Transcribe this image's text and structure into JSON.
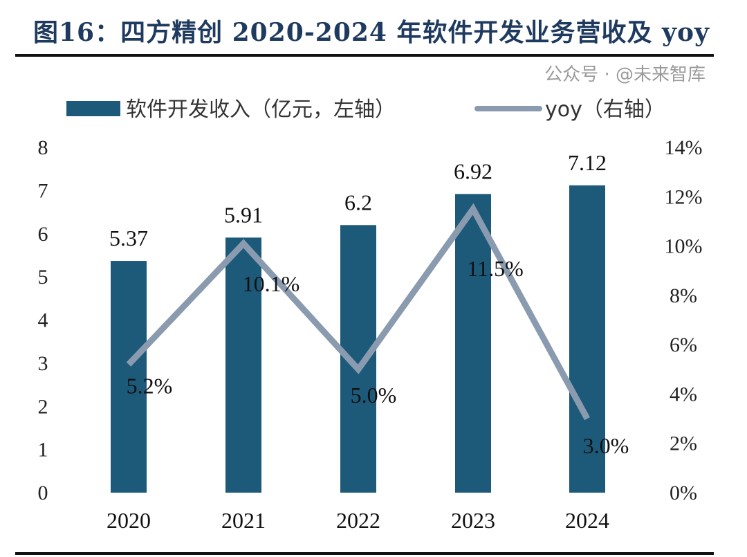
{
  "chart_data": {
    "type": "bar+line",
    "title": "图16：四方精创 2020-2024 年软件开发业务营收及 yoy",
    "categories": [
      "2020",
      "2021",
      "2022",
      "2023",
      "2024"
    ],
    "series": [
      {
        "name": "软件开发收入（亿元，左轴）",
        "type": "bar",
        "axis": "left",
        "values": [
          5.37,
          5.91,
          6.2,
          6.92,
          7.12
        ],
        "labels": [
          "5.37",
          "5.91",
          "6.2",
          "6.92",
          "7.12"
        ],
        "color": "#1d5a7a"
      },
      {
        "name": "yoy（右轴）",
        "type": "line",
        "axis": "right",
        "values": [
          5.2,
          10.1,
          5.0,
          11.5,
          3.0
        ],
        "labels": [
          "5.2%",
          "10.1%",
          "5.0%",
          "11.5%",
          "3.0%"
        ],
        "color": "#8a9bb0"
      }
    ],
    "left_axis": {
      "range": [
        0,
        8
      ],
      "ticks": [
        "0",
        "1",
        "2",
        "3",
        "4",
        "5",
        "6",
        "7",
        "8"
      ]
    },
    "right_axis": {
      "range": [
        0,
        14
      ],
      "unit": "%",
      "ticks": [
        "0%",
        "2%",
        "4%",
        "6%",
        "8%",
        "10%",
        "12%",
        "14%"
      ]
    },
    "legend_position": "top",
    "grid": false
  },
  "watermark": "公众号 · @未来智库"
}
